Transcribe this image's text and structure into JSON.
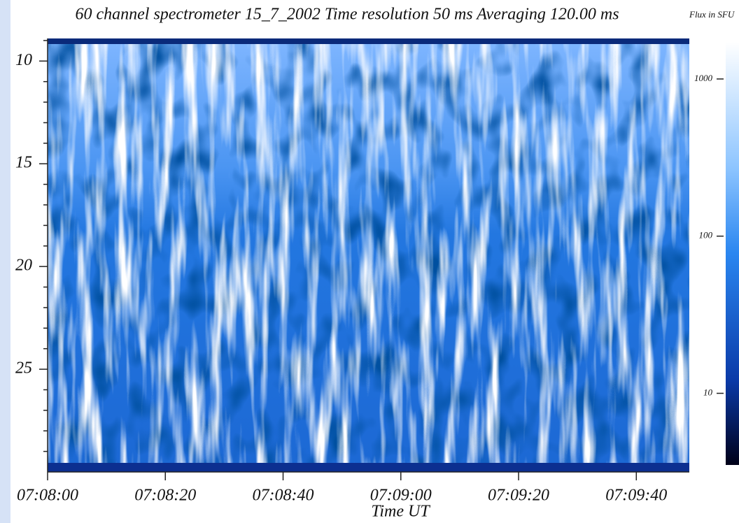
{
  "chart_data": {
    "type": "heatmap",
    "title": "60 channel spectrometer   15_7_2002  Time resolution  50 ms    Averaging 120.00 ms",
    "x_label": "Time UT",
    "xlim": [
      25680,
      25789
    ],
    "xticks": [
      {
        "value": 25680,
        "label": "07:08:00"
      },
      {
        "value": 25700,
        "label": "07:08:20"
      },
      {
        "value": 25720,
        "label": "07:08:40"
      },
      {
        "value": 25740,
        "label": "07:09:00"
      },
      {
        "value": 25760,
        "label": "07:09:20"
      },
      {
        "value": 25780,
        "label": "07:09:40"
      }
    ],
    "ylim": [
      8.9,
      30
    ],
    "yticks": [
      10,
      15,
      20,
      25
    ],
    "yminorticks": [
      9,
      11,
      12,
      13,
      14,
      16,
      17,
      18,
      19,
      21,
      22,
      23,
      24,
      26,
      27,
      28,
      29
    ],
    "colorbar": {
      "label": "Flux in SFU",
      "log": true,
      "lim": [
        3.5,
        1720
      ],
      "ticks": [
        10,
        100,
        1000
      ]
    }
  }
}
